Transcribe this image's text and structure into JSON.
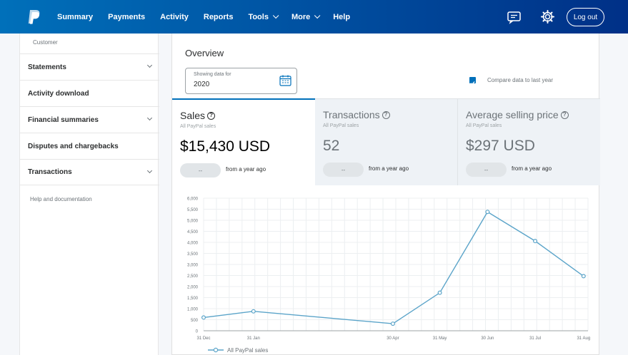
{
  "nav": {
    "items": [
      {
        "label": "Summary",
        "dropdown": false
      },
      {
        "label": "Payments",
        "dropdown": false
      },
      {
        "label": "Activity",
        "dropdown": false
      },
      {
        "label": "Reports",
        "dropdown": false
      },
      {
        "label": "Tools",
        "dropdown": true
      },
      {
        "label": "More",
        "dropdown": true
      },
      {
        "label": "Help",
        "dropdown": false
      }
    ],
    "logout_label": "Log out",
    "icons": [
      "paypal-logo",
      "message-center-icon",
      "gear-icon"
    ]
  },
  "sidebar": {
    "customer_label": "Customer",
    "items": [
      {
        "label": "Statements",
        "expandable": true
      },
      {
        "label": "Activity download",
        "expandable": false
      },
      {
        "label": "Financial summaries",
        "expandable": true
      },
      {
        "label": "Disputes and chargebacks",
        "expandable": false
      },
      {
        "label": "Transactions",
        "expandable": true
      }
    ],
    "help_label": "Help and documentation"
  },
  "overview": {
    "title": "Overview",
    "date_label": "Showing data for",
    "date_value": "2020",
    "compare_label": "Compare data to last year",
    "compare_checked": true
  },
  "metrics": [
    {
      "title": "Sales",
      "sub": "All PayPal sales",
      "value": "$15,430 USD",
      "pill": "--",
      "note": "from a year ago",
      "active": true
    },
    {
      "title": "Transactions",
      "sub": "All PayPal sales",
      "value": "52",
      "pill": "--",
      "note": "from a year ago",
      "active": false
    },
    {
      "title": "Average selling price",
      "sub": "All PayPal sales",
      "value": "$297 USD",
      "pill": "--",
      "note": "from a year ago",
      "active": false
    }
  ],
  "colors": {
    "nav_start": "#0070ba",
    "nav_end": "#003087",
    "accent": "#0070ba",
    "line": "#5ba4c9"
  },
  "chart_data": {
    "type": "line",
    "categories": [
      "31 Dec",
      "31 Jan",
      "30 Apr",
      "31 May",
      "30 Jun",
      "31 Jul",
      "31 Aug"
    ],
    "series": [
      {
        "name": "All PayPal sales",
        "values": [
          600,
          880,
          320,
          1720,
          5380,
          4060,
          2470
        ]
      }
    ],
    "yticks": [
      "0",
      "500",
      "1,000",
      "1,500",
      "2,000",
      "2,500",
      "3,000",
      "3,500",
      "4,000",
      "4,500",
      "5,000",
      "5,500",
      "6,000"
    ],
    "ylim": [
      0,
      6000
    ],
    "grid": true,
    "legend": "bottom-left"
  }
}
